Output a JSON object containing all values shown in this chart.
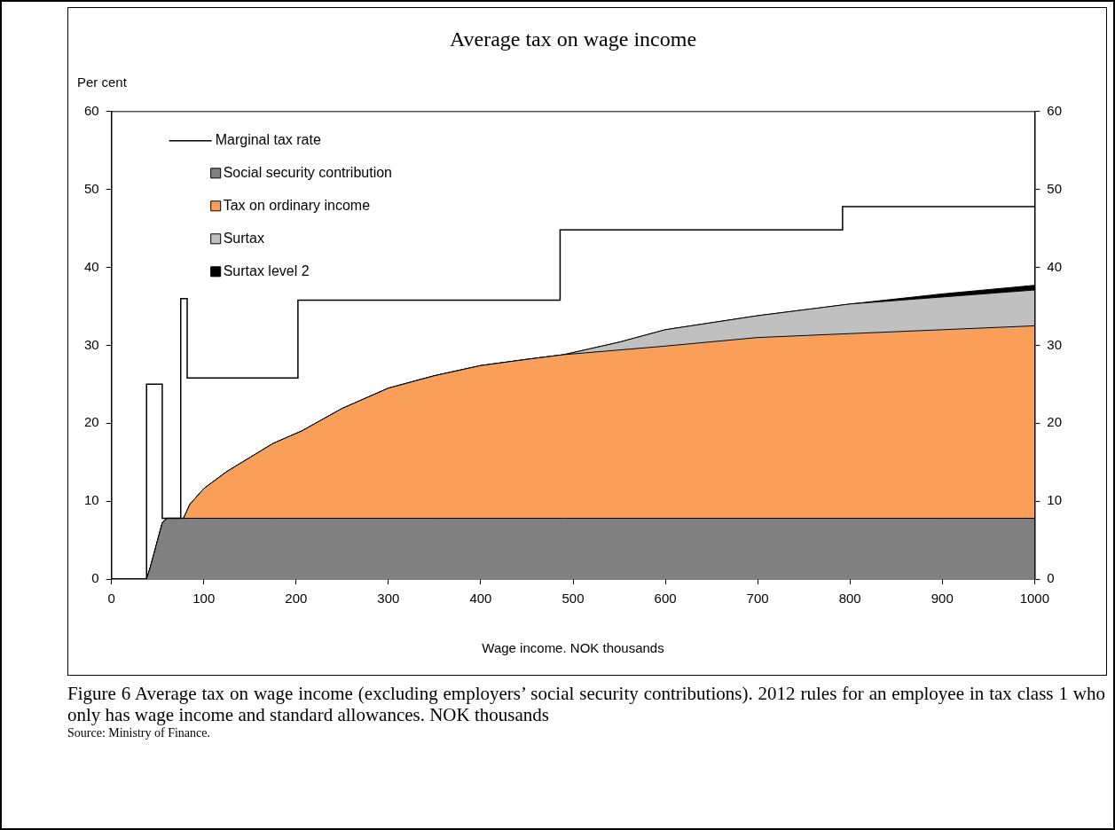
{
  "chart_data": {
    "type": "area",
    "title": "Average tax on wage income",
    "xlabel": "Wage income. NOK thousands",
    "ylabel": "Per cent",
    "stacked": true,
    "legend": "top left",
    "x": [
      0,
      38,
      42,
      50,
      55,
      60,
      75,
      78,
      85,
      100,
      125,
      150,
      175,
      206,
      250,
      300,
      350,
      400,
      450,
      490,
      550,
      600,
      700,
      800,
      900,
      1000
    ],
    "series": [
      {
        "name": "Marginal tax rate",
        "type": "step",
        "color": "#000000",
        "x": [
          0,
          38,
          55,
          75,
          82,
          202,
          486,
          792,
          1000
        ],
        "values": [
          0,
          25,
          7.8,
          36,
          25.8,
          35.8,
          44.8,
          47.8,
          47.8
        ]
      },
      {
        "name": "Social security contribution",
        "color": "#808080",
        "values": [
          0,
          0,
          1.5,
          5,
          7.2,
          7.8,
          7.8,
          7.8,
          7.8,
          7.8,
          7.8,
          7.8,
          7.8,
          7.8,
          7.8,
          7.8,
          7.8,
          7.8,
          7.8,
          7.8,
          7.8,
          7.8,
          7.8,
          7.8,
          7.8,
          7.8
        ]
      },
      {
        "name": "Tax on ordinary income",
        "color": "#fa9f5a",
        "values": [
          0,
          0,
          0,
          0,
          0,
          0,
          0,
          0,
          1.8,
          3.8,
          6,
          7.8,
          9.6,
          11.2,
          14.1,
          16.7,
          18.3,
          19.6,
          20.4,
          21,
          21.6,
          22.1,
          23.2,
          23.7,
          24.2,
          24.7
        ]
      },
      {
        "name": "Surtax",
        "color": "#c0c0c0",
        "values": [
          0,
          0,
          0,
          0,
          0,
          0,
          0,
          0,
          0,
          0,
          0,
          0,
          0,
          0,
          0,
          0,
          0,
          0,
          0,
          0,
          1,
          2.1,
          2.8,
          3.8,
          4.2,
          4.6
        ]
      },
      {
        "name": "Surtax level 2",
        "color": "#000000",
        "values": [
          0,
          0,
          0,
          0,
          0,
          0,
          0,
          0,
          0,
          0,
          0,
          0,
          0,
          0,
          0,
          0,
          0,
          0,
          0,
          0,
          0,
          0,
          0,
          0,
          0.4,
          0.6
        ]
      }
    ],
    "xlim": [
      0,
      1000
    ],
    "xticks": [
      0,
      100,
      200,
      300,
      400,
      500,
      600,
      700,
      800,
      900,
      1000
    ],
    "ylim": [
      0,
      60
    ],
    "yticks": [
      0,
      10,
      20,
      30,
      40,
      50,
      60
    ],
    "y2lim": [
      0,
      60
    ],
    "y2ticks": [
      0,
      10,
      20,
      30,
      40,
      50,
      60
    ],
    "grid": false,
    "annotations": [
      "Figure 6 Average tax on wage income (excluding employers’ social security contributions). 2012 rules for an employee in tax class 1 who only has wage income and standard allowances. NOK thousands",
      "Source: Ministry of Finance."
    ]
  }
}
